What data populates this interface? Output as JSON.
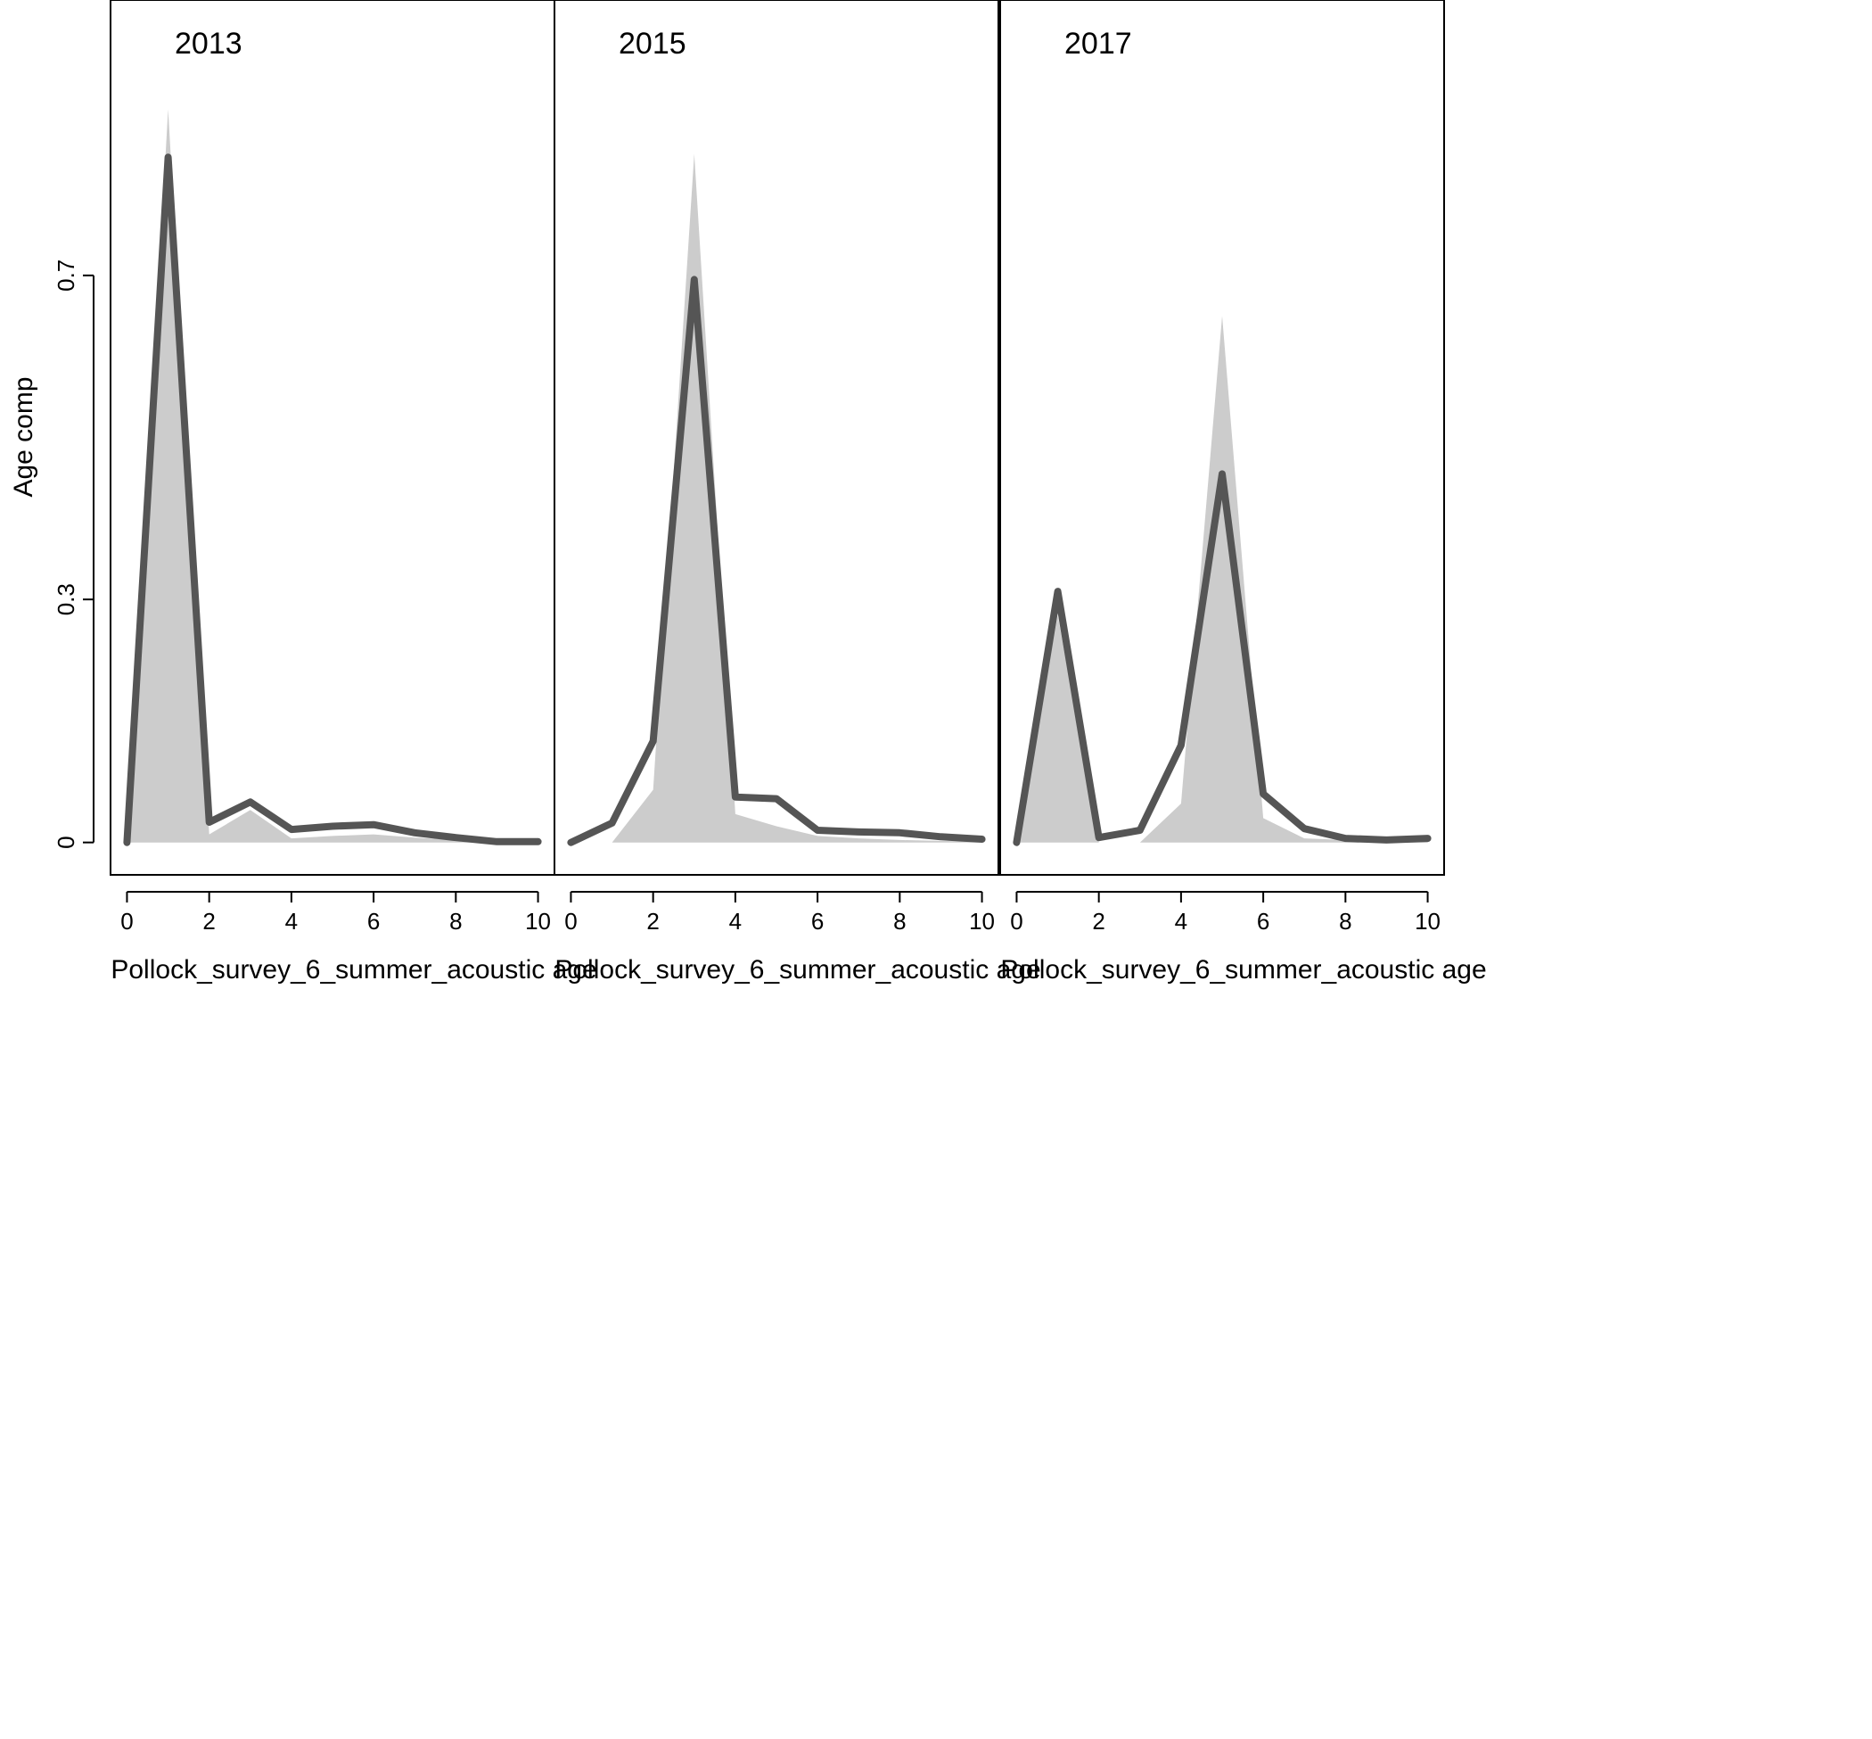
{
  "chart_data": {
    "type": "area",
    "ylabel": "Age comp",
    "y_ticks": [
      "0",
      "0.3",
      "0.7"
    ],
    "y_tick_values": [
      0,
      0.3,
      0.7
    ],
    "ylim": [
      -0.04,
      1.04
    ],
    "xlim": [
      -0.4,
      10.4
    ],
    "x_ticks": [
      "0",
      "2",
      "4",
      "6",
      "8",
      "10"
    ],
    "x_tick_values": [
      0,
      2,
      4,
      6,
      8,
      10
    ],
    "grid": false,
    "legend": "none",
    "colors": {
      "observed_fill": "#cccccc",
      "expected_line": "#555555",
      "frame": "#000000"
    },
    "panels": [
      {
        "title": "2013",
        "xlabel": "Pollock_survey_6_summer_acoustic age",
        "x": [
          0,
          1,
          2,
          3,
          4,
          5,
          6,
          7,
          8,
          9,
          10
        ],
        "observed": [
          0,
          0.905,
          0.01,
          0.04,
          0.005,
          0.008,
          0.01,
          0.006,
          0.003,
          0.001,
          0.001
        ],
        "expected": [
          0,
          0.846,
          0.025,
          0.05,
          0.016,
          0.02,
          0.022,
          0.012,
          0.006,
          0.001,
          0.001
        ]
      },
      {
        "title": "2015",
        "xlabel": "Pollock_survey_6_summer_acoustic age",
        "x": [
          0,
          1,
          2,
          3,
          4,
          5,
          6,
          7,
          8,
          9,
          10
        ],
        "observed": [
          0,
          0,
          0.065,
          0.85,
          0.035,
          0.02,
          0.008,
          0.005,
          0.003,
          0.002,
          0.001
        ],
        "expected": [
          0,
          0.024,
          0.125,
          0.695,
          0.056,
          0.054,
          0.015,
          0.013,
          0.012,
          0.007,
          0.004
        ]
      },
      {
        "title": "2017",
        "xlabel": "Pollock_survey_6_summer_acoustic age",
        "x": [
          0,
          1,
          2,
          3,
          4,
          5,
          6,
          7,
          8,
          9,
          10
        ],
        "observed": [
          0,
          0.28,
          0,
          0,
          0.048,
          0.65,
          0.03,
          0.005,
          0.003,
          0.002,
          0.002
        ],
        "expected": [
          0,
          0.31,
          0.006,
          0.015,
          0.12,
          0.455,
          0.06,
          0.017,
          0.005,
          0.003,
          0.005
        ]
      }
    ]
  }
}
